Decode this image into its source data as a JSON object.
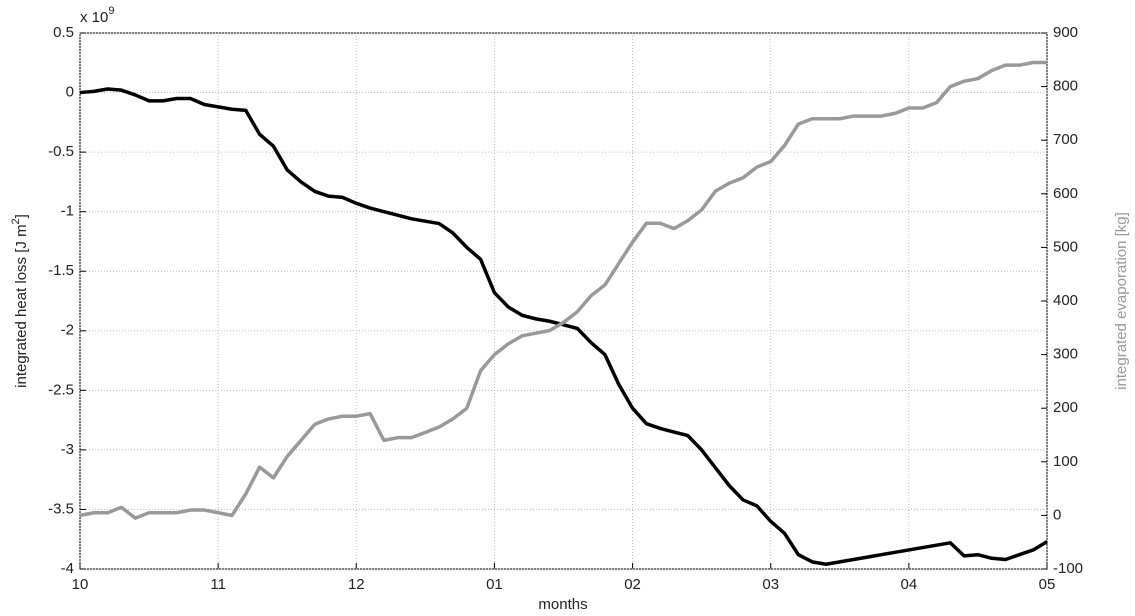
{
  "chart_data": {
    "type": "line",
    "xlabel": "months",
    "ylabel": {
      "text": "integrated heat loss [J m",
      "sup": "2",
      "end": "]"
    },
    "y2label": "integrated evaporation [kg]",
    "y_multiplier": {
      "base": "x 10",
      "exponent": "9"
    },
    "grid": true,
    "xlim": [
      0,
      7
    ],
    "xticks": [
      {
        "value": 0,
        "label": "10"
      },
      {
        "value": 1,
        "label": "11"
      },
      {
        "value": 2,
        "label": "12"
      },
      {
        "value": 3,
        "label": "01"
      },
      {
        "value": 4,
        "label": "02"
      },
      {
        "value": 5,
        "label": "03"
      },
      {
        "value": 6,
        "label": "04"
      },
      {
        "value": 7,
        "label": "05"
      }
    ],
    "ylim": [
      -4,
      0.5
    ],
    "yticks": [
      -4,
      -3.5,
      -3,
      -2.5,
      -2,
      -1.5,
      -1,
      -0.5,
      0,
      0.5
    ],
    "y2lim": [
      -100,
      900
    ],
    "y2ticks": [
      -100,
      0,
      100,
      200,
      300,
      400,
      500,
      600,
      700,
      800,
      900
    ],
    "x": [
      0,
      0.1,
      0.2,
      0.3,
      0.4,
      0.5,
      0.6,
      0.7,
      0.8,
      0.9,
      1,
      1.1,
      1.2,
      1.3,
      1.4,
      1.5,
      1.6,
      1.7,
      1.8,
      1.9,
      2,
      2.1,
      2.2,
      2.3,
      2.4,
      2.5,
      2.6,
      2.7,
      2.8,
      2.9,
      3,
      3.1,
      3.2,
      3.3,
      3.4,
      3.5,
      3.6,
      3.7,
      3.8,
      3.9,
      4,
      4.1,
      4.2,
      4.3,
      4.4,
      4.5,
      4.6,
      4.7,
      4.8,
      4.9,
      5,
      5.1,
      5.2,
      5.3,
      5.4,
      5.5,
      5.6,
      5.7,
      5.8,
      5.9,
      6,
      6.1,
      6.2,
      6.3,
      6.4,
      6.5,
      6.6,
      6.7,
      6.8,
      6.9,
      7
    ],
    "series": [
      {
        "color": "#000000",
        "axis": "y",
        "values": [
          0,
          0.01,
          0.03,
          0.02,
          -0.02,
          -0.07,
          -0.07,
          -0.05,
          -0.05,
          -0.1,
          -0.12,
          -0.14,
          -0.15,
          -0.35,
          -0.45,
          -0.65,
          -0.75,
          -0.83,
          -0.87,
          -0.88,
          -0.93,
          -0.97,
          -1.0,
          -1.03,
          -1.06,
          -1.08,
          -1.1,
          -1.18,
          -1.3,
          -1.4,
          -1.68,
          -1.8,
          -1.87,
          -1.9,
          -1.92,
          -1.95,
          -1.98,
          -2.1,
          -2.2,
          -2.45,
          -2.65,
          -2.78,
          -2.82,
          -2.85,
          -2.88,
          -3.0,
          -3.15,
          -3.3,
          -3.42,
          -3.47,
          -3.6,
          -3.7,
          -3.88,
          -3.94,
          -3.96,
          -3.94,
          -3.92,
          -3.9,
          -3.88,
          -3.86,
          -3.84,
          -3.82,
          -3.8,
          -3.78,
          -3.89,
          -3.88,
          -3.91,
          -3.92,
          -3.88,
          -3.84,
          -3.77
        ]
      },
      {
        "color": "#999999",
        "axis": "y2",
        "values": [
          0,
          5,
          5,
          15,
          -5,
          5,
          5,
          5,
          10,
          10,
          5,
          0,
          40,
          90,
          70,
          110,
          140,
          170,
          180,
          185,
          185,
          190,
          140,
          145,
          145,
          155,
          165,
          180,
          200,
          270,
          300,
          320,
          335,
          340,
          345,
          360,
          380,
          410,
          430,
          470,
          510,
          545,
          545,
          535,
          550,
          570,
          605,
          620,
          630,
          650,
          660,
          690,
          730,
          740,
          740,
          740,
          745,
          745,
          745,
          750,
          760,
          760,
          770,
          800,
          810,
          815,
          830,
          840,
          840,
          845,
          845
        ]
      }
    ]
  }
}
